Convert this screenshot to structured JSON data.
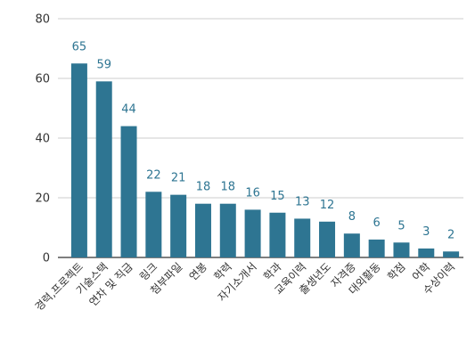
{
  "chart_data": {
    "type": "bar",
    "title": "",
    "xlabel": "",
    "ylabel": "",
    "ylim": [
      0,
      80
    ],
    "yticks": [
      0,
      20,
      40,
      60,
      80
    ],
    "grid": true,
    "legend": "none",
    "bar_color": "#2e7592",
    "label_color": "#2e7592",
    "categories": [
      "경력,프로젝트",
      "기술스택",
      "연차 및 직급",
      "링크",
      "첨부파일",
      "연봉",
      "학력",
      "자기소개서",
      "학과",
      "교육이력",
      "출생년도",
      "자격증",
      "대외활동",
      "학점",
      "어학",
      "수상이력"
    ],
    "values": [
      65,
      59,
      44,
      22,
      21,
      18,
      18,
      16,
      15,
      13,
      12,
      8,
      6,
      5,
      3,
      2
    ]
  }
}
